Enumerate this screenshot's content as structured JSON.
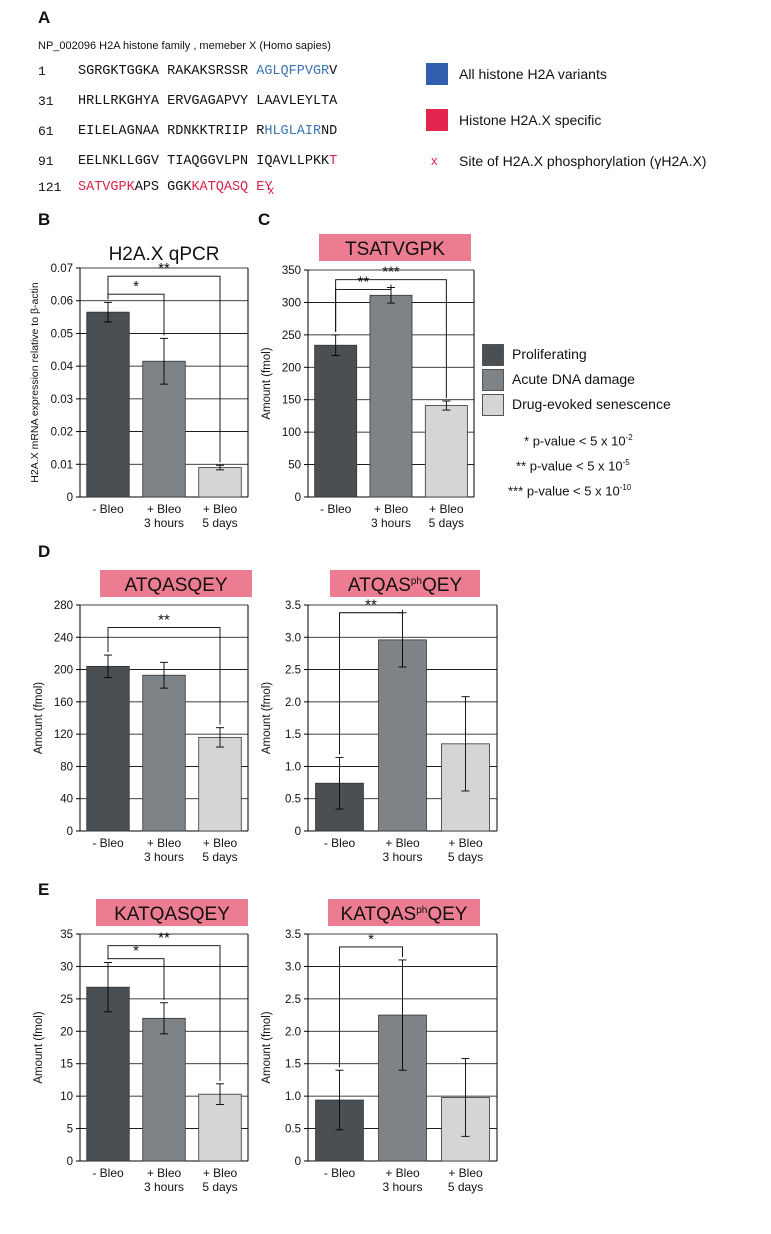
{
  "panelA": {
    "letter": "A",
    "header": "NP_002096 H2A histone family , memeber X (Homo sapies)",
    "rows": [
      {
        "num": "1",
        "segments": [
          {
            "t": "SGRGKTGGKA RAKAKSRSSR ",
            "c": ""
          },
          {
            "t": "AGLQFPVGR",
            "c": "blue"
          },
          {
            "t": "V",
            "c": ""
          }
        ]
      },
      {
        "num": "31",
        "segments": [
          {
            "t": "HRLLRKGHYA ERVGAGAPVY LAAVLEYLTA",
            "c": ""
          }
        ]
      },
      {
        "num": "61",
        "segments": [
          {
            "t": "EILELAGNAA RDNKKTRIIP R",
            "c": ""
          },
          {
            "t": "HLGLAIR",
            "c": "blue"
          },
          {
            "t": "ND",
            "c": ""
          }
        ]
      },
      {
        "num": "91",
        "segments": [
          {
            "t": "EELNKLLGGV TIAQGGVLPN IQAVLLPKK",
            "c": ""
          },
          {
            "t": "T",
            "c": "red"
          }
        ]
      },
      {
        "num": "121",
        "segments": [
          {
            "t": "SATVGPK",
            "c": "red"
          },
          {
            "t": "APS GGK",
            "c": ""
          },
          {
            "t": "KATQASQ",
            "c": "red"
          },
          {
            "t": " ",
            "c": ""
          },
          {
            "t": "EY",
            "c": "red"
          }
        ]
      }
    ],
    "phospho_marker": "x",
    "legend": [
      {
        "label": "All histone H2A variants",
        "color": "#2f5fae"
      },
      {
        "label": "Histone H2A.X specific",
        "color": "#e3254f"
      },
      {
        "label": "Site of H2A.X phosphorylation (γH2A.X)",
        "marker": "x"
      }
    ]
  },
  "legend2": {
    "items": [
      {
        "label": "Proliferating",
        "color": "#4a4f54"
      },
      {
        "label": "Acute DNA damage",
        "color": "#7e8387"
      },
      {
        "label": "Drug-evoked senescence",
        "color": "#d4d6d6"
      }
    ],
    "significance": [
      {
        "stars": "*",
        "text": "p-value < 5 x 10",
        "exp": "-2"
      },
      {
        "stars": "**",
        "text": "p-value < 5 x 10",
        "exp": "-5"
      },
      {
        "stars": "***",
        "text": "p-value < 5 x 10",
        "exp": "-10"
      }
    ]
  },
  "chart_data": [
    {
      "id": "B",
      "type": "bar",
      "title": "H2A.X qPCR",
      "title_style": "plain",
      "ylabel": "H2A.X mRNA expression relative to β-actin",
      "ylim": [
        0,
        0.07
      ],
      "ticks": [
        0,
        0.01,
        0.02,
        0.03,
        0.04,
        0.05,
        0.06,
        0.07
      ],
      "tick_labels": [
        "0",
        "0.01",
        "0.02",
        "0.03",
        "0.04",
        "0.05",
        "0.06",
        "0.07"
      ],
      "categories": [
        [
          "- Bleo"
        ],
        [
          "+ Bleo",
          "3 hours"
        ],
        [
          "+ Bleo",
          "5 days"
        ]
      ],
      "values": [
        0.0565,
        0.0415,
        0.009
      ],
      "errors": [
        0.003,
        0.007,
        0.0007
      ],
      "sig": [
        {
          "from": 0,
          "to": 1,
          "stars": "*",
          "level": 0.062
        },
        {
          "from": 0,
          "to": 2,
          "stars": "**",
          "level": 0.0675
        }
      ]
    },
    {
      "id": "C",
      "type": "bar",
      "title": "TSATVGPK",
      "title_style": "box",
      "ylabel": "Amount (fmol)",
      "ylim": [
        0,
        350
      ],
      "ticks": [
        0,
        50,
        100,
        150,
        200,
        250,
        300,
        350
      ],
      "tick_labels": [
        "0",
        "50",
        "100",
        "150",
        "200",
        "250",
        "300",
        "350"
      ],
      "categories": [
        [
          "- Bleo"
        ],
        [
          "+ Bleo",
          "3 hours"
        ],
        [
          "+ Bleo",
          "5 days"
        ]
      ],
      "values": [
        234,
        311,
        141
      ],
      "errors": [
        16,
        12,
        7
      ],
      "sig": [
        {
          "from": 0,
          "to": 1,
          "stars": "**",
          "level": 320
        },
        {
          "from": 0,
          "to": 2,
          "stars": "***",
          "level": 335
        }
      ]
    },
    {
      "id": "D1",
      "type": "bar",
      "title": "ATQASQEY",
      "title_style": "box",
      "ylabel": "Amount (fmol)",
      "ylim": [
        0,
        280
      ],
      "ticks": [
        0,
        40,
        80,
        120,
        160,
        200,
        240,
        280
      ],
      "tick_labels": [
        "0",
        "40",
        "80",
        "120",
        "160",
        "200",
        "240",
        "280"
      ],
      "categories": [
        [
          "- Bleo"
        ],
        [
          "+ Bleo",
          "3 hours"
        ],
        [
          "+ Bleo",
          "5 days"
        ]
      ],
      "values": [
        204,
        193,
        116
      ],
      "errors": [
        14,
        16,
        12
      ],
      "sig": [
        {
          "from": 0,
          "to": 2,
          "stars": "**",
          "level": 252
        }
      ]
    },
    {
      "id": "D2",
      "type": "bar",
      "title": "ATQASQEY",
      "title_sup_after": "ATQAS",
      "title_sup": "ph",
      "title_style": "box",
      "ylabel": "Amount (fmol)",
      "ylim": [
        0,
        3.5
      ],
      "ticks": [
        0,
        0.5,
        1.0,
        1.5,
        2.0,
        2.5,
        3.0,
        3.5
      ],
      "tick_labels": [
        "0",
        "0.5",
        "1.0",
        "1.5",
        "2.0",
        "2.5",
        "3.0",
        "3.5"
      ],
      "categories": [
        [
          "- Bleo"
        ],
        [
          "+ Bleo",
          "3 hours"
        ],
        [
          "+ Bleo",
          "5 days"
        ]
      ],
      "values": [
        0.74,
        2.96,
        1.35
      ],
      "errors": [
        0.4,
        0.42,
        0.73
      ],
      "sig": [
        {
          "from": 0,
          "to": 1,
          "stars": "**",
          "level": 3.38
        }
      ]
    },
    {
      "id": "E1",
      "type": "bar",
      "title": "KATQASQEY",
      "title_style": "box",
      "ylabel": "Amount (fmol)",
      "ylim": [
        0,
        35
      ],
      "ticks": [
        0,
        5,
        10,
        15,
        20,
        25,
        30,
        35
      ],
      "tick_labels": [
        "0",
        "5",
        "10",
        "15",
        "20",
        "25",
        "30",
        "35"
      ],
      "categories": [
        [
          "- Bleo"
        ],
        [
          "+ Bleo",
          "3 hours"
        ],
        [
          "+ Bleo",
          "5 days"
        ]
      ],
      "values": [
        26.8,
        22.0,
        10.3
      ],
      "errors": [
        3.8,
        2.4,
        1.6
      ],
      "sig": [
        {
          "from": 0,
          "to": 1,
          "stars": "*",
          "level": 31.2
        },
        {
          "from": 0,
          "to": 2,
          "stars": "**",
          "level": 33.2
        }
      ]
    },
    {
      "id": "E2",
      "type": "bar",
      "title": "KATQASQEY",
      "title_sup_after": "KATQAS",
      "title_sup": "ph",
      "title_style": "box",
      "ylabel": "Amount (fmol)",
      "ylim": [
        0,
        3.5
      ],
      "ticks": [
        0,
        0.5,
        1.0,
        1.5,
        2.0,
        2.5,
        3.0,
        3.5
      ],
      "tick_labels": [
        "0",
        "0.5",
        "1.0",
        "1.5",
        "2.0",
        "2.5",
        "3.0",
        "3.5"
      ],
      "categories": [
        [
          "- Bleo"
        ],
        [
          "+ Bleo",
          "3 hours"
        ],
        [
          "+ Bleo",
          "5 days"
        ]
      ],
      "values": [
        0.94,
        2.25,
        0.98
      ],
      "errors": [
        0.46,
        0.85,
        0.6
      ],
      "sig": [
        {
          "from": 0,
          "to": 1,
          "stars": "*",
          "level": 3.3
        }
      ]
    }
  ],
  "colors": {
    "bars": [
      "#4a4f54",
      "#7e8387",
      "#d4d6d6"
    ],
    "title_box": "#ec7c91",
    "grid": "#000000"
  },
  "panel_letters": {
    "B": "B",
    "C": "C",
    "D": "D",
    "E": "E"
  }
}
